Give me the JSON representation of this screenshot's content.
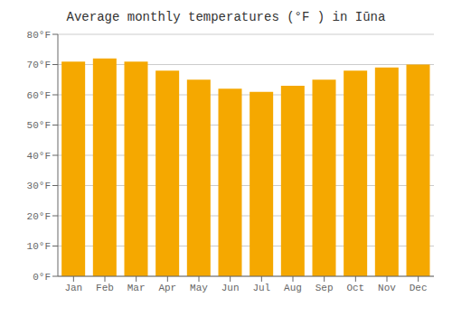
{
  "chart_data": {
    "type": "bar",
    "title": "Average monthly temperatures (°F ) in Iūna",
    "categories": [
      "Jan",
      "Feb",
      "Mar",
      "Apr",
      "May",
      "Jun",
      "Jul",
      "Aug",
      "Sep",
      "Oct",
      "Nov",
      "Dec"
    ],
    "values": [
      71,
      72,
      71,
      68,
      65,
      62,
      61,
      63,
      65,
      68,
      69,
      70
    ],
    "color": "#F5A800",
    "ylim": [
      0,
      80
    ],
    "yticks": [
      {
        "value": 0,
        "label": "0°F"
      },
      {
        "value": 10,
        "label": "10°F"
      },
      {
        "value": 20,
        "label": "20°F"
      },
      {
        "value": 30,
        "label": "30°F"
      },
      {
        "value": 40,
        "label": "40°F"
      },
      {
        "value": 50,
        "label": "50°F"
      },
      {
        "value": 60,
        "label": "60°F"
      },
      {
        "value": 70,
        "label": "70°F"
      },
      {
        "value": 80,
        "label": "80°F"
      }
    ],
    "grid": true
  }
}
